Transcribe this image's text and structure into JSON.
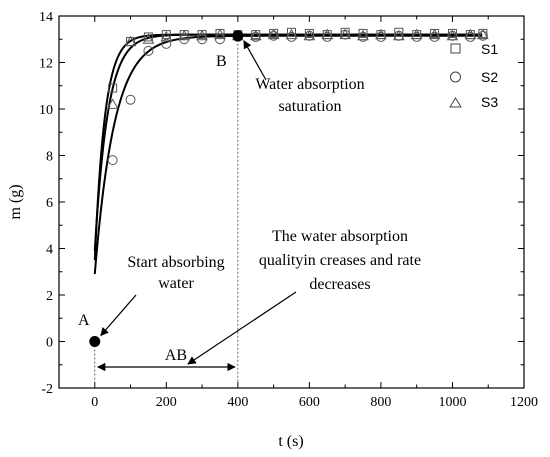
{
  "chart_data": {
    "type": "scatter",
    "xlabel": "t (s)",
    "ylabel": "m (g)",
    "xlim": [
      -100,
      1200
    ],
    "ylim": [
      -2,
      14
    ],
    "xticks": [
      0,
      200,
      400,
      600,
      800,
      1000,
      1200
    ],
    "yticks": [
      -2,
      0,
      2,
      4,
      6,
      8,
      10,
      12,
      14
    ],
    "grid": false,
    "legend_position": "right",
    "series": [
      {
        "name": "S1",
        "marker": "square",
        "x": [
          50,
          100,
          150,
          200,
          250,
          300,
          350,
          400,
          450,
          500,
          550,
          600,
          650,
          700,
          750,
          800,
          850,
          900,
          950,
          1000,
          1050,
          1085
        ],
        "y": [
          10.9,
          12.9,
          13.1,
          13.2,
          13.2,
          13.2,
          13.25,
          13.2,
          13.2,
          13.25,
          13.3,
          13.25,
          13.2,
          13.3,
          13.25,
          13.2,
          13.3,
          13.2,
          13.25,
          13.25,
          13.2,
          13.25
        ]
      },
      {
        "name": "S2",
        "marker": "circle",
        "x": [
          50,
          100,
          150,
          200,
          250,
          300,
          350,
          400,
          450,
          500,
          550,
          600,
          650,
          700,
          750,
          800,
          850,
          900,
          950,
          1000,
          1050,
          1085
        ],
        "y": [
          7.8,
          10.4,
          12.5,
          12.8,
          13.0,
          13.0,
          13.0,
          13.1,
          13.1,
          13.15,
          13.1,
          13.15,
          13.1,
          13.2,
          13.1,
          13.1,
          13.15,
          13.1,
          13.1,
          13.15,
          13.1,
          13.15
        ]
      },
      {
        "name": "S3",
        "marker": "triangle",
        "x": [
          50,
          100,
          150,
          200,
          250,
          300,
          350,
          400,
          450,
          500,
          550,
          600,
          650,
          700,
          750,
          800,
          850,
          900,
          950,
          1000,
          1050,
          1085
        ],
        "y": [
          10.2,
          12.9,
          13.0,
          13.1,
          13.15,
          13.15,
          13.2,
          13.15,
          13.15,
          13.2,
          13.2,
          13.15,
          13.2,
          13.2,
          13.15,
          13.2,
          13.15,
          13.2,
          13.2,
          13.15,
          13.2,
          13.2
        ]
      }
    ],
    "fit_curves": [
      {
        "series": "S1",
        "y0": 3.5,
        "ymax": 13.2,
        "tau": 28
      },
      {
        "series": "S2",
        "y0": 2.9,
        "ymax": 13.15,
        "tau": 55
      },
      {
        "series": "S3",
        "y0": 3.9,
        "ymax": 13.2,
        "tau": 36
      }
    ],
    "points": [
      {
        "label": "A",
        "x": 0,
        "y": 0
      },
      {
        "label": "B",
        "x": 400,
        "y": 13.15
      }
    ],
    "interval_label": "AB",
    "annotations": {
      "start": [
        "Start absorbing",
        "water"
      ],
      "saturation": [
        "Water absorption",
        "saturation"
      ],
      "middle": [
        "The water absorption",
        "qualityin  creases and rate",
        "decreases"
      ]
    }
  }
}
